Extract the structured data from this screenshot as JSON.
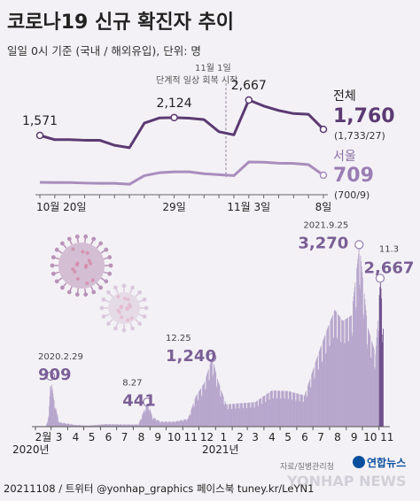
{
  "header": {
    "title": "코로나19 신규 확진자 추이",
    "subtitle": "일일 0시 기준 (국내 / 해외유입), 단위: 명"
  },
  "annotation": {
    "line1": "11월 1일",
    "line2": "단계적 일상 회복 시작"
  },
  "footer": {
    "credit": "20211108 / 트위터 @yonhap_graphics  페이스북 tuney.kr/LeYN1",
    "source": "자료/질병관리청",
    "logo": "연합뉴스",
    "watermark": "YONHAP NEWS"
  },
  "colors": {
    "total": "#5b3a72",
    "seoul": "#a98dbd",
    "bar": "#b7a6cc",
    "bar_dark": "#6f4f8c",
    "background": "#f3f1f5"
  },
  "chart_data": [
    {
      "type": "line",
      "x": [
        "10월 20일",
        "10월 21일",
        "10월 22일",
        "10월 23일",
        "10월 24일",
        "10월 25일",
        "10월 26일",
        "10월 27일",
        "10월 28일",
        "10월 29일",
        "10월 30일",
        "10월 31일",
        "11월 1일",
        "11월 2일",
        "11월 3일",
        "11월 4일",
        "11월 5일",
        "11월 6일",
        "11월 7일",
        "11월 8일"
      ],
      "x_tick_labels": [
        {
          "text": "10월 20일",
          "index": 0
        },
        {
          "text": "29일",
          "index": 9
        },
        {
          "text": "11월 3일",
          "index": 14
        },
        {
          "text": "8일",
          "index": 19
        }
      ],
      "series": [
        {
          "name": "전체",
          "values": [
            1571,
            1440,
            1440,
            1422,
            1422,
            1266,
            1190,
            1952,
            2111,
            2124,
            2104,
            2061,
            1686,
            1589,
            2667,
            2482,
            2344,
            2248,
            2224,
            1760
          ],
          "labels": [
            {
              "index": 0,
              "text": "1,571"
            },
            {
              "index": 9,
              "text": "2,124"
            },
            {
              "index": 14,
              "text": "2,667"
            }
          ],
          "end_value": "1,760",
          "end_detail": "(1,733/27)"
        },
        {
          "name": "서울",
          "values": [
            560,
            555,
            555,
            545,
            540,
            540,
            520,
            700,
            760,
            780,
            780,
            740,
            720,
            700,
            985,
            980,
            960,
            955,
            930,
            709
          ],
          "end_value": "709",
          "end_detail": "(700/9)"
        }
      ]
    },
    {
      "type": "bar",
      "x_tick_labels": [
        "2월",
        "3",
        "4",
        "5",
        "6",
        "7",
        "8",
        "9",
        "10",
        "11",
        "12",
        "1",
        "2",
        "3",
        "4",
        "5",
        "6",
        "7",
        "8",
        "9",
        "10",
        "11"
      ],
      "year_labels": [
        "2020년",
        "2021년"
      ],
      "keypoints": [
        {
          "date": "2020-02-20",
          "value": 10
        },
        {
          "date": "2020-02-25",
          "value": 190
        },
        {
          "date": "2020-02-29",
          "value": 909,
          "date_label": "2020.2.29",
          "value_label": "909"
        },
        {
          "date": "2020-03-05",
          "value": 520
        },
        {
          "date": "2020-03-15",
          "value": 80
        },
        {
          "date": "2020-04-15",
          "value": 30
        },
        {
          "date": "2020-05-10",
          "value": 20
        },
        {
          "date": "2020-06-10",
          "value": 45
        },
        {
          "date": "2020-07-10",
          "value": 40
        },
        {
          "date": "2020-08-10",
          "value": 40
        },
        {
          "date": "2020-08-20",
          "value": 280
        },
        {
          "date": "2020-08-27",
          "value": 441,
          "date_label": "8.27",
          "value_label": "441"
        },
        {
          "date": "2020-09-05",
          "value": 170
        },
        {
          "date": "2020-09-20",
          "value": 90
        },
        {
          "date": "2020-10-15",
          "value": 90
        },
        {
          "date": "2020-11-10",
          "value": 140
        },
        {
          "date": "2020-11-25",
          "value": 550
        },
        {
          "date": "2020-12-10",
          "value": 780
        },
        {
          "date": "2020-12-25",
          "value": 1240,
          "date_label": "12.25",
          "value_label": "1,240"
        },
        {
          "date": "2021-01-05",
          "value": 820
        },
        {
          "date": "2021-01-20",
          "value": 400
        },
        {
          "date": "2021-02-15",
          "value": 420
        },
        {
          "date": "2021-03-15",
          "value": 440
        },
        {
          "date": "2021-04-15",
          "value": 650
        },
        {
          "date": "2021-05-15",
          "value": 640
        },
        {
          "date": "2021-06-15",
          "value": 560
        },
        {
          "date": "2021-07-10",
          "value": 1300
        },
        {
          "date": "2021-07-25",
          "value": 1700
        },
        {
          "date": "2021-08-10",
          "value": 2100
        },
        {
          "date": "2021-08-25",
          "value": 1900
        },
        {
          "date": "2021-09-10",
          "value": 2000
        },
        {
          "date": "2021-09-25",
          "value": 3270,
          "date_label": "2021.9.25",
          "value_label": "3,270"
        },
        {
          "date": "2021-10-10",
          "value": 1800
        },
        {
          "date": "2021-10-25",
          "value": 1300
        },
        {
          "date": "2021-11-03",
          "value": 2667,
          "date_label": "11.3",
          "value_label": "2,667"
        },
        {
          "date": "2021-11-08",
          "value": 1760
        }
      ],
      "x_range": [
        "2020-02-01",
        "2021-11-08"
      ],
      "ylim": [
        0,
        3500
      ]
    }
  ]
}
